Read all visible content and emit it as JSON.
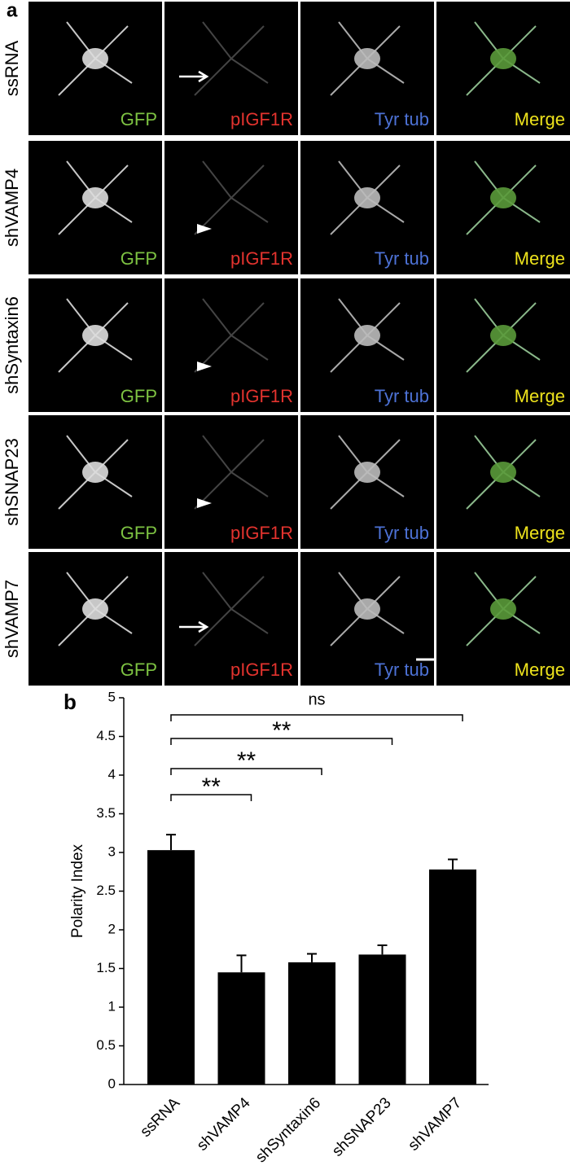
{
  "panel_a": {
    "label": "a",
    "rows": [
      "ssRNA",
      "shVAMP4",
      "shSyntaxin6",
      "shSNAP23",
      "shVAMP7"
    ],
    "columns": [
      {
        "name": "GFP",
        "color": "#7dc242"
      },
      {
        "name": "pIGF1R",
        "color": "#e2332e"
      },
      {
        "name": "Tyr tub",
        "color": "#4d72d6"
      },
      {
        "name": "Merge",
        "color": "#ede21c"
      }
    ]
  },
  "chart_data": {
    "type": "bar",
    "panel_label": "b",
    "y_label": "Polarity Index",
    "categories": [
      "ssRNA",
      "shVAMP4",
      "shSyntaxin6",
      "shSNAP23",
      "shVAMP7"
    ],
    "values": [
      3.03,
      1.45,
      1.58,
      1.68,
      2.78
    ],
    "errors": [
      0.2,
      0.22,
      0.11,
      0.12,
      0.13
    ],
    "color": "#000000",
    "ylim": [
      0,
      5
    ],
    "yticks": [
      0,
      0.5,
      1,
      1.5,
      2,
      2.5,
      3,
      3.5,
      4,
      4.5,
      5
    ],
    "annotations": [
      "ns",
      "**",
      "**",
      "**"
    ]
  }
}
